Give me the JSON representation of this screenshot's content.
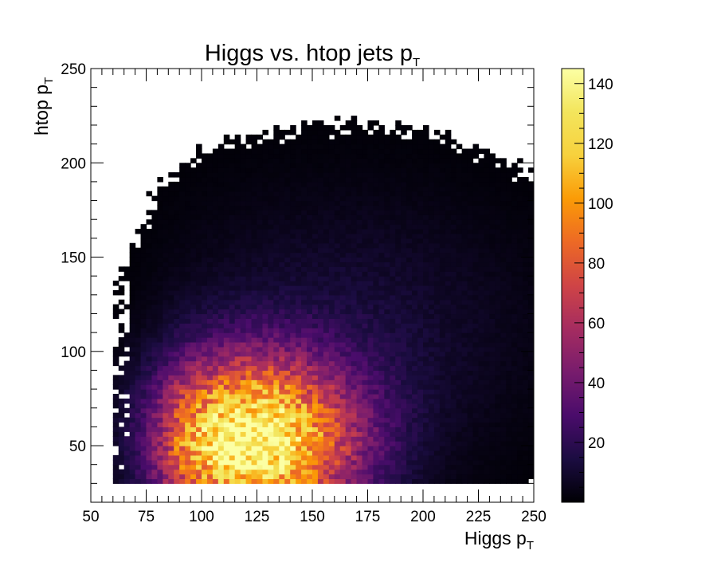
{
  "chart_data": {
    "type": "heatmap",
    "title_main": "Higgs vs. htop jets p",
    "title_sub": "T",
    "x_label_main": "Higgs p",
    "x_label_sub": "T",
    "y_label_main": "htop p",
    "y_label_sub": "T",
    "x_range": [
      50,
      250
    ],
    "y_range": [
      20,
      250
    ],
    "x_ticks": [
      50,
      75,
      100,
      125,
      150,
      175,
      200,
      225,
      250
    ],
    "y_ticks": [
      50,
      100,
      150,
      200,
      250
    ],
    "colorbar": {
      "range": [
        0,
        145
      ],
      "ticks": [
        20,
        40,
        60,
        80,
        100,
        120,
        140
      ],
      "colormap": "inferno"
    },
    "bin_width": 2.5,
    "data_region": {
      "x_min": 60,
      "y_min": 30
    },
    "peak": {
      "x": 122,
      "y": 52,
      "value": 145
    }
  }
}
